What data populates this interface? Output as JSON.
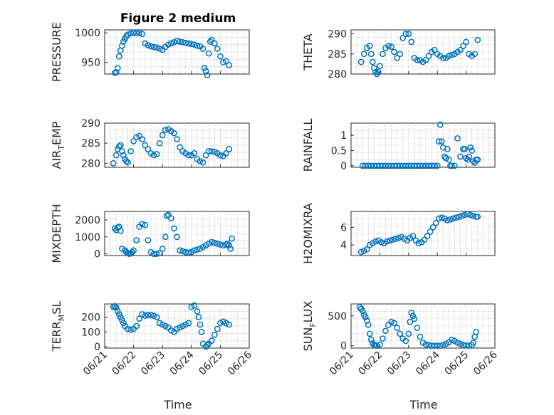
{
  "figure_title": "Figure 2 medium",
  "xlabel": "Time",
  "date_ticks": [
    "06/21",
    "06/22",
    "06/23",
    "06/24",
    "06/25",
    "06/26"
  ],
  "marker_color": "#0072BD",
  "chart_data": [
    {
      "type": "scatter",
      "ylabel": "PRESSURE",
      "ylim": [
        930,
        1005
      ],
      "yticks": [
        950,
        1000
      ],
      "xlim": [
        "2024-06-21",
        "2024-06-26"
      ],
      "grid": true,
      "x": [
        21.35,
        21.4,
        21.45,
        21.5,
        21.55,
        21.6,
        21.65,
        21.7,
        21.75,
        21.8,
        21.9,
        22.0,
        22.1,
        22.2,
        22.3,
        22.4,
        22.5,
        22.6,
        22.7,
        22.8,
        22.9,
        23.0,
        23.1,
        23.2,
        23.3,
        23.4,
        23.5,
        23.6,
        23.7,
        23.8,
        23.9,
        24.0,
        24.1,
        24.2,
        24.3,
        24.4,
        24.45,
        24.5,
        24.55,
        24.6,
        24.65,
        24.7,
        24.8,
        24.9,
        25.0,
        25.1,
        25.2,
        25.3
      ],
      "y": [
        932,
        933,
        940,
        960,
        970,
        978,
        985,
        990,
        994,
        997,
        999,
        1000,
        1000,
        1000,
        998,
        982,
        979,
        977,
        976,
        975,
        973,
        971,
        976,
        980,
        982,
        984,
        986,
        985,
        984,
        983,
        982,
        981,
        980,
        978,
        977,
        973,
        940,
        935,
        928,
        965,
        985,
        988,
        982,
        973,
        960,
        950,
        952,
        945
      ]
    },
    {
      "type": "scatter",
      "ylabel": "THETA",
      "ylim": [
        280,
        291
      ],
      "yticks": [
        280,
        285,
        290
      ],
      "grid": true,
      "x": [
        21.35,
        21.45,
        21.55,
        21.65,
        21.7,
        21.75,
        21.8,
        21.85,
        21.9,
        21.95,
        22.0,
        22.1,
        22.2,
        22.3,
        22.4,
        22.5,
        22.6,
        22.7,
        22.8,
        22.9,
        23.0,
        23.1,
        23.2,
        23.3,
        23.4,
        23.5,
        23.6,
        23.7,
        23.8,
        23.9,
        24.0,
        24.1,
        24.2,
        24.3,
        24.4,
        24.5,
        24.6,
        24.7,
        24.8,
        24.9,
        25.0,
        25.1,
        25.2,
        25.3,
        25.4
      ],
      "y": [
        283,
        285,
        286.5,
        287,
        285,
        283,
        281.5,
        280.5,
        280,
        280.5,
        282,
        285,
        286.5,
        287,
        286.8,
        285.5,
        284,
        285,
        289,
        290,
        290,
        288,
        284,
        283.5,
        283.4,
        283,
        283.5,
        284.5,
        285.5,
        286,
        285,
        284.5,
        284,
        284,
        284.5,
        284.8,
        285,
        285.5,
        286,
        287,
        288,
        285,
        284.5,
        285,
        288.5
      ]
    },
    {
      "type": "scatter",
      "ylabel": "AIR_TEMP",
      "ylim": [
        279,
        290
      ],
      "yticks": [
        280,
        285,
        290
      ],
      "grid": true,
      "x": [
        21.3,
        21.4,
        21.45,
        21.5,
        21.55,
        21.6,
        21.65,
        21.7,
        21.75,
        21.8,
        21.9,
        22.0,
        22.1,
        22.2,
        22.3,
        22.4,
        22.5,
        22.6,
        22.7,
        22.8,
        22.9,
        23.0,
        23.1,
        23.2,
        23.3,
        23.4,
        23.5,
        23.6,
        23.7,
        23.8,
        23.9,
        24.0,
        24.1,
        24.2,
        24.3,
        24.4,
        24.5,
        24.6,
        24.7,
        24.8,
        24.9,
        25.0,
        25.1,
        25.2,
        25.3
      ],
      "y": [
        280,
        282,
        283.5,
        284.2,
        284.5,
        283,
        282,
        281,
        280.5,
        280.2,
        283,
        285.5,
        286.5,
        286.8,
        286,
        284.5,
        283.5,
        282.5,
        282,
        282.3,
        285,
        287,
        288.3,
        288.5,
        288,
        287.5,
        286,
        284,
        283,
        282.5,
        282,
        282,
        282.5,
        281,
        280.5,
        280.2,
        282,
        283,
        283,
        282.8,
        282.5,
        282,
        281.8,
        282.5,
        283.5
      ]
    },
    {
      "type": "scatter",
      "ylabel": "RAINFALL",
      "ylim": [
        -0.05,
        1.4
      ],
      "yticks": [
        0,
        0.5,
        1
      ],
      "grid": true,
      "x": [
        21.4,
        21.5,
        21.6,
        21.7,
        21.8,
        21.9,
        22.0,
        22.1,
        22.2,
        22.3,
        22.4,
        22.5,
        22.6,
        22.7,
        22.8,
        22.9,
        23.0,
        23.1,
        23.2,
        23.3,
        23.4,
        23.5,
        23.6,
        23.7,
        23.8,
        23.9,
        24.0,
        24.05,
        24.1,
        24.15,
        24.2,
        24.25,
        24.3,
        24.35,
        24.4,
        24.45,
        24.5,
        24.6,
        24.7,
        24.8,
        24.9,
        24.95,
        25.0,
        25.05,
        25.1,
        25.15,
        25.2,
        25.25,
        25.3,
        25.35,
        25.4
      ],
      "y": [
        0,
        0,
        0,
        0,
        0,
        0,
        0,
        0,
        0,
        0,
        0,
        0,
        0,
        0,
        0,
        0,
        0,
        0,
        0,
        0,
        0,
        0,
        0,
        0,
        0,
        0,
        0,
        0.8,
        1.35,
        0.8,
        0.6,
        0.3,
        0.25,
        0.55,
        0.2,
        0,
        0,
        0,
        0.9,
        0.3,
        0.55,
        0.55,
        0.25,
        0.2,
        0.3,
        0.6,
        0.5,
        0.15,
        0.1,
        0.2,
        0.2
      ]
    },
    {
      "type": "scatter",
      "ylabel": "MIXDEPTH",
      "ylim": [
        -100,
        2500
      ],
      "yticks": [
        0,
        1000,
        2000
      ],
      "grid": true,
      "x": [
        21.35,
        21.4,
        21.45,
        21.5,
        21.55,
        21.6,
        21.7,
        21.75,
        21.8,
        21.85,
        21.9,
        21.95,
        22.0,
        22.1,
        22.2,
        22.3,
        22.4,
        22.5,
        22.6,
        22.7,
        22.8,
        22.9,
        23.0,
        23.1,
        23.15,
        23.2,
        23.3,
        23.4,
        23.5,
        23.6,
        23.7,
        23.8,
        23.9,
        24.0,
        24.1,
        24.2,
        24.3,
        24.4,
        24.5,
        24.6,
        24.7,
        24.8,
        24.9,
        25.0,
        25.1,
        25.2,
        25.25,
        25.3,
        25.35,
        25.4
      ],
      "y": [
        1500,
        1400,
        1550,
        1600,
        1350,
        300,
        200,
        100,
        50,
        0,
        30,
        100,
        200,
        800,
        1600,
        1750,
        1700,
        800,
        100,
        0,
        0,
        50,
        300,
        1000,
        2250,
        2300,
        2100,
        1500,
        1000,
        200,
        150,
        100,
        80,
        100,
        200,
        250,
        300,
        400,
        500,
        600,
        700,
        650,
        600,
        550,
        500,
        550,
        600,
        500,
        300,
        900
      ]
    },
    {
      "type": "scatter",
      "ylabel": "H2OMIXRA",
      "ylim": [
        2.8,
        7.8
      ],
      "yticks": [
        4,
        6
      ],
      "grid": true,
      "x": [
        21.35,
        21.45,
        21.55,
        21.65,
        21.75,
        21.85,
        21.95,
        22.05,
        22.15,
        22.25,
        22.35,
        22.45,
        22.55,
        22.65,
        22.75,
        22.85,
        22.95,
        23.05,
        23.15,
        23.25,
        23.35,
        23.45,
        23.55,
        23.65,
        23.75,
        23.85,
        23.95,
        24.05,
        24.15,
        24.25,
        24.35,
        24.45,
        24.55,
        24.65,
        24.75,
        24.85,
        24.95,
        25.05,
        25.15,
        25.25,
        25.35,
        25.4
      ],
      "y": [
        3.2,
        3.3,
        3.5,
        4.0,
        4.2,
        4.4,
        4.5,
        4.3,
        4.2,
        4.4,
        4.5,
        4.6,
        4.7,
        4.8,
        4.9,
        4.7,
        4.5,
        4.8,
        5.0,
        4.5,
        4.2,
        4.3,
        4.6,
        5.0,
        5.5,
        6.0,
        6.5,
        7.0,
        7.1,
        7.0,
        6.8,
        6.9,
        7.0,
        7.1,
        7.2,
        7.3,
        7.4,
        7.5,
        7.4,
        7.3,
        7.2,
        7.2
      ]
    },
    {
      "type": "scatter",
      "ylabel": "TERR_MSL",
      "ylim": [
        -10,
        290
      ],
      "yticks": [
        0,
        100,
        200
      ],
      "grid": true,
      "x": [
        21.3,
        21.35,
        21.4,
        21.45,
        21.5,
        21.55,
        21.6,
        21.65,
        21.7,
        21.8,
        21.9,
        22.0,
        22.1,
        22.2,
        22.3,
        22.4,
        22.5,
        22.6,
        22.7,
        22.8,
        22.9,
        23.0,
        23.1,
        23.2,
        23.3,
        23.4,
        23.5,
        23.6,
        23.7,
        23.8,
        23.9,
        24.0,
        24.1,
        24.2,
        24.25,
        24.3,
        24.35,
        24.4,
        24.5,
        24.55,
        24.6,
        24.7,
        24.8,
        24.9,
        25.0,
        25.1,
        25.2,
        25.3
      ],
      "y": [
        270,
        275,
        265,
        240,
        220,
        200,
        180,
        160,
        140,
        120,
        115,
        120,
        140,
        190,
        220,
        210,
        215,
        215,
        210,
        200,
        160,
        150,
        140,
        130,
        110,
        100,
        120,
        130,
        140,
        150,
        160,
        270,
        280,
        240,
        200,
        150,
        100,
        20,
        0,
        10,
        20,
        40,
        80,
        120,
        160,
        170,
        160,
        150
      ]
    },
    {
      "type": "scatter",
      "ylabel": "SUN_FLUX",
      "ylim": [
        -40,
        700
      ],
      "yticks": [
        0,
        500
      ],
      "grid": true,
      "x": [
        21.3,
        21.35,
        21.4,
        21.45,
        21.5,
        21.55,
        21.6,
        21.65,
        21.7,
        21.75,
        21.8,
        21.85,
        21.9,
        22.0,
        22.1,
        22.2,
        22.3,
        22.4,
        22.5,
        22.6,
        22.7,
        22.8,
        22.9,
        23.0,
        23.05,
        23.1,
        23.15,
        23.2,
        23.3,
        23.4,
        23.5,
        23.6,
        23.7,
        23.8,
        23.9,
        24.0,
        24.1,
        24.2,
        24.3,
        24.4,
        24.5,
        24.6,
        24.7,
        24.8,
        24.9,
        25.0,
        25.1,
        25.2,
        25.25,
        25.3,
        25.35
      ],
      "y": [
        650,
        620,
        580,
        520,
        480,
        420,
        350,
        200,
        100,
        40,
        10,
        5,
        0,
        20,
        120,
        250,
        350,
        400,
        380,
        300,
        200,
        120,
        80,
        200,
        400,
        550,
        500,
        450,
        300,
        150,
        50,
        20,
        10,
        0,
        0,
        0,
        0,
        10,
        30,
        60,
        100,
        80,
        50,
        30,
        10,
        5,
        0,
        10,
        50,
        150,
        230
      ]
    }
  ]
}
